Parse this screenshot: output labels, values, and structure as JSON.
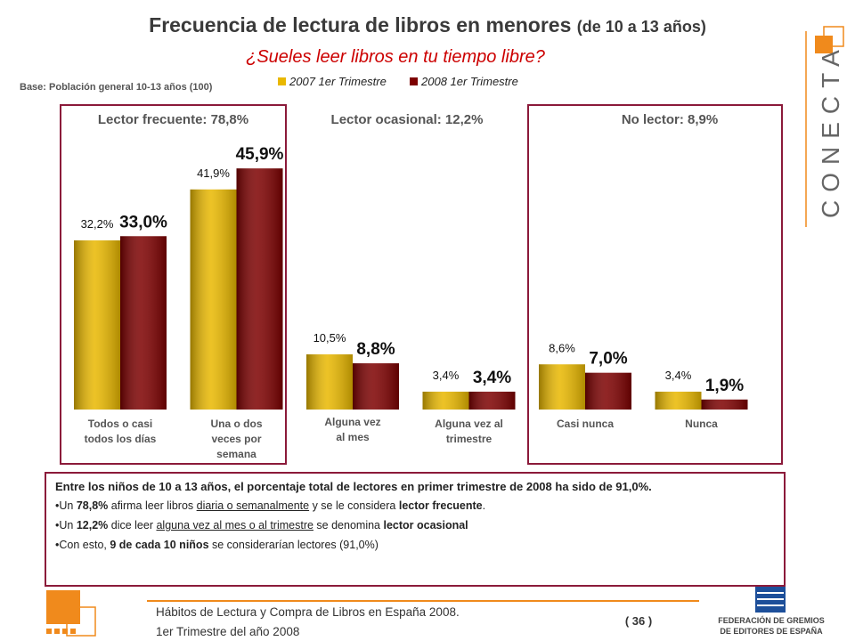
{
  "chart_data": {
    "type": "bar",
    "title": "Frecuencia de lectura de libros en menores",
    "title_note": "(de 10 a 13 años)",
    "subtitle": "¿Sueles leer libros en tu tiempo libre?",
    "base_note": "Base: Población general 10-13 años (100)",
    "groups": [
      {
        "label": "Lector frecuente: 78,8%",
        "boxed": true
      },
      {
        "label": "Lector ocasional: 12,2%",
        "boxed": false
      },
      {
        "label": "No lector: 8,9%",
        "boxed": true
      }
    ],
    "categories": [
      "Todos o casi todos los días",
      "Una o dos veces por semana",
      "Alguna vez al mes",
      "Alguna vez al trimestre",
      "Casi nunca",
      "Nunca"
    ],
    "series": [
      {
        "name": "2007 1er Trimestre",
        "color": "#e9b800",
        "values": [
          32.2,
          41.9,
          10.5,
          3.4,
          8.6,
          3.4
        ],
        "value_labels": [
          "32,2%",
          "41,9%",
          "10,5%",
          "3,4%",
          "8,6%",
          "3,4%"
        ]
      },
      {
        "name": "2008 1er Trimestre",
        "color": "#7d0000",
        "values": [
          33.0,
          45.9,
          8.8,
          3.4,
          7.0,
          1.9
        ],
        "value_labels": [
          "33,0%",
          "45,9%",
          "8,8%",
          "3,4%",
          "7,0%",
          "1,9%"
        ]
      }
    ]
  },
  "summary": {
    "paragraphs": [
      [
        {
          "text": "Entre los niños de 10 a 13 años, el porcentaje total de lectores en primer trimestre de 2008 ha sido de 91,0%.",
          "bold": true
        }
      ],
      [
        {
          "text": "•Un "
        },
        {
          "text": "78,8%",
          "bold": true
        },
        {
          "text": " afirma leer libros "
        },
        {
          "text": "diaria o semanalmente",
          "underline": true
        },
        {
          "text": " y se le considera "
        },
        {
          "text": "lector frecuente",
          "bold": true
        },
        {
          "text": "."
        }
      ],
      [
        {
          "text": "•Un "
        },
        {
          "text": "12,2%",
          "bold": true
        },
        {
          "text": " dice leer "
        },
        {
          "text": "alguna vez al mes o al trimestre",
          "underline": true
        },
        {
          "text": " se denomina "
        },
        {
          "text": "lector ocasional",
          "bold": true
        }
      ],
      [
        {
          "text": "•Con esto, "
        },
        {
          "text": "9 de cada 10 niños",
          "bold": true
        },
        {
          "text": " se considerarían lectores (91,0%)"
        }
      ]
    ]
  },
  "footer": {
    "lines": [
      "Hábitos de Lectura y Compra de Libros en España 2008.",
      "1er Trimestre del año 2008"
    ],
    "page": "( 36 )",
    "brand": "CONECTA",
    "publisher": [
      "FEDERACIÓN DE GREMIOS",
      "DE EDITORES DE ESPAÑA"
    ]
  }
}
